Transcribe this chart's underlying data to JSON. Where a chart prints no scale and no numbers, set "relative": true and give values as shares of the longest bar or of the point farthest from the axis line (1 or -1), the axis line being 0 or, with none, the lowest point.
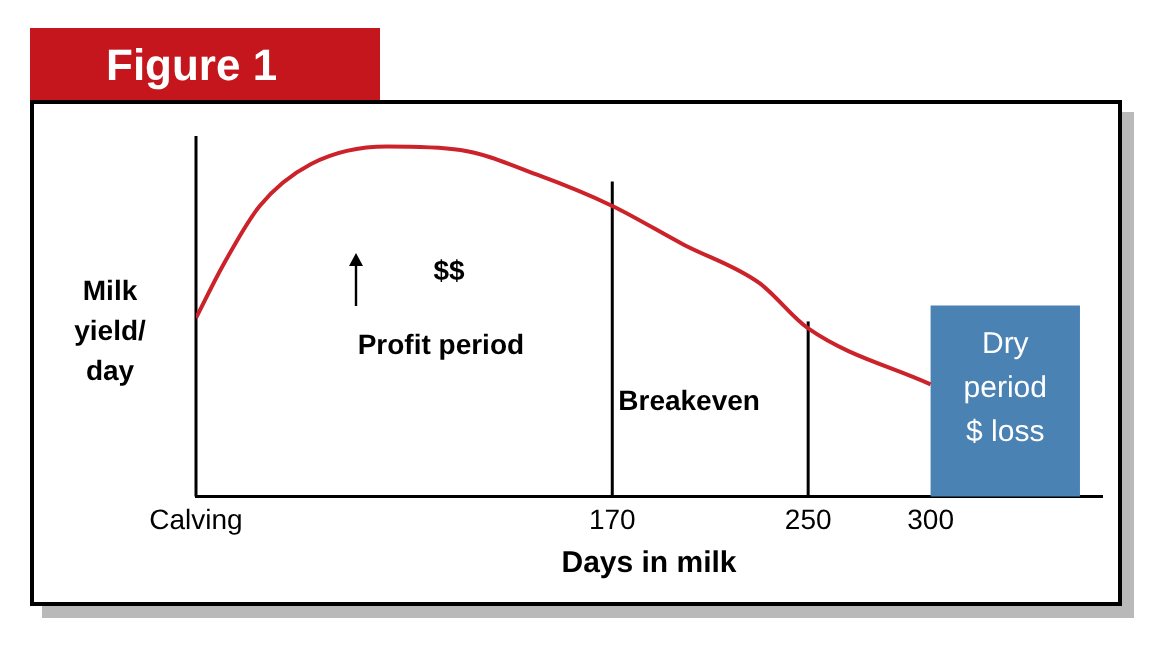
{
  "chart_data": {
    "type": "line",
    "title": "Figure 1",
    "xlabel": "Days in milk",
    "ylabel": "Milk yield/ day",
    "relative": true,
    "x": [
      0,
      11,
      26,
      47,
      78,
      108,
      139,
      170,
      199,
      230,
      250,
      300
    ],
    "series": [
      {
        "color": "#cc2229",
        "values": [
          0.51,
          0.66,
          0.83,
          0.95,
          1,
          0.99,
          0.92,
          0.83,
          0.72,
          0.61,
          0.48,
          0.32
        ]
      }
    ],
    "xlim": [
      0,
      370
    ],
    "xticks": [
      {
        "value": 0,
        "label": "Calving"
      },
      170,
      250,
      300
    ],
    "ref_lines": [
      {
        "axis": "x",
        "value": 170,
        "label": "Breakeven",
        "color": "#000000"
      },
      {
        "axis": "x",
        "value": 250,
        "label": null,
        "color": "#000000"
      }
    ],
    "bands": [
      {
        "axis": "x",
        "from": 300,
        "to": 361,
        "label": "Dry period $ loss",
        "color": "#4a82b4"
      }
    ],
    "annotations": [
      "$$",
      "Profit period"
    ],
    "grid": false,
    "legend": false,
    "marker": "none",
    "line_style": "solid"
  }
}
